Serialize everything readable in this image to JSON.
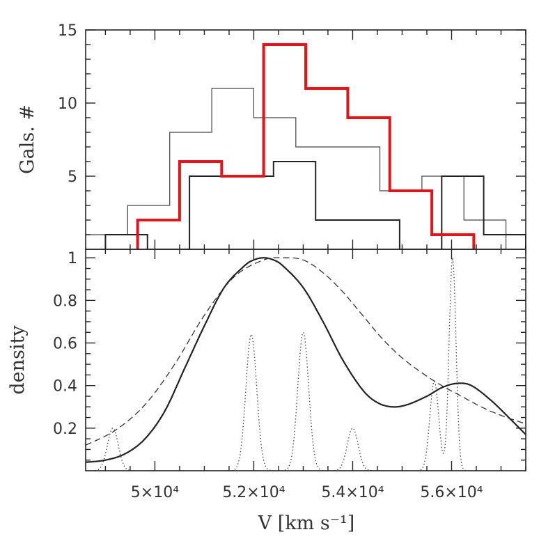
{
  "chart_data": [
    {
      "type": "histogram",
      "panel": "top",
      "ylabel": "Gals. #",
      "xlim": [
        48600,
        57500
      ],
      "ylim": [
        0,
        15
      ],
      "yticks": [
        5,
        10,
        15
      ],
      "ytick_labels": [
        "5",
        "10",
        "15"
      ],
      "series": [
        {
          "style": "thin-gray",
          "color": "#444444",
          "edges": [
            48600,
            49450,
            50300,
            51150,
            52000,
            52850,
            53700,
            54550,
            55400,
            56250,
            57100
          ],
          "counts": [
            1,
            3,
            8,
            11,
            9,
            7,
            7,
            4,
            5,
            2
          ]
        },
        {
          "style": "medium-dark",
          "color": "#222222",
          "edges": [
            49000,
            49850,
            50700,
            51550,
            52400,
            53250,
            54100,
            54950,
            55800,
            56650,
            57500
          ],
          "counts": [
            1,
            0,
            5,
            5,
            6,
            2,
            2,
            0,
            5,
            1
          ]
        },
        {
          "style": "thick-red",
          "color": "#e0161b",
          "edges": [
            49650,
            50500,
            51350,
            52200,
            53050,
            53900,
            54750,
            55600,
            56450
          ],
          "counts": [
            2,
            6,
            5,
            14,
            11,
            9,
            4,
            1
          ]
        }
      ]
    },
    {
      "type": "line",
      "panel": "bottom",
      "xlabel": "V [km s⁻¹]",
      "ylabel": "density",
      "xlim": [
        48600,
        57500
      ],
      "ylim": [
        0,
        1.04
      ],
      "yticks": [
        0.2,
        0.4,
        0.6,
        0.8,
        1
      ],
      "ytick_labels": [
        "0.2",
        "0.4",
        "0.6",
        "0.8",
        "1"
      ],
      "xticks": [
        50000,
        52000,
        54000,
        56000
      ],
      "xtick_labels": [
        "5×10⁴",
        "5.2×10⁴",
        "5.4×10⁴",
        "5.6×10⁴"
      ],
      "series": [
        {
          "style": "solid",
          "color": "#222222",
          "x": [
            48600,
            49000,
            49400,
            49800,
            50200,
            50600,
            51000,
            51400,
            51800,
            52000,
            52200,
            52400,
            52600,
            53000,
            53400,
            53800,
            54200,
            54500,
            54800,
            55100,
            55500,
            55800,
            56100,
            56400,
            56800,
            57200,
            57500
          ],
          "y": [
            0.04,
            0.05,
            0.08,
            0.15,
            0.28,
            0.48,
            0.68,
            0.86,
            0.96,
            0.99,
            1.0,
            0.99,
            0.96,
            0.86,
            0.7,
            0.52,
            0.38,
            0.32,
            0.3,
            0.31,
            0.35,
            0.39,
            0.41,
            0.4,
            0.33,
            0.24,
            0.17
          ]
        },
        {
          "style": "dashed",
          "color": "#333333",
          "x": [
            48600,
            49200,
            49800,
            50400,
            51000,
            51600,
            52200,
            52600,
            53000,
            53400,
            53800,
            54200,
            54600,
            55000,
            55400,
            55800,
            56200,
            56600,
            57000,
            57500
          ],
          "y": [
            0.12,
            0.19,
            0.31,
            0.5,
            0.73,
            0.91,
            0.99,
            1.0,
            0.99,
            0.93,
            0.84,
            0.73,
            0.62,
            0.53,
            0.46,
            0.4,
            0.35,
            0.3,
            0.26,
            0.22
          ]
        },
        {
          "style": "dotted",
          "color": "#444444",
          "peaks": [
            {
              "x": 49150,
              "height": 0.2,
              "width": 110
            },
            {
              "x": 51950,
              "height": 0.64,
              "width": 110
            },
            {
              "x": 53000,
              "height": 0.65,
              "width": 110
            },
            {
              "x": 54000,
              "height": 0.2,
              "width": 110
            },
            {
              "x": 55650,
              "height": 0.42,
              "width": 90
            },
            {
              "x": 56020,
              "height": 1.0,
              "width": 70
            }
          ]
        }
      ]
    }
  ]
}
